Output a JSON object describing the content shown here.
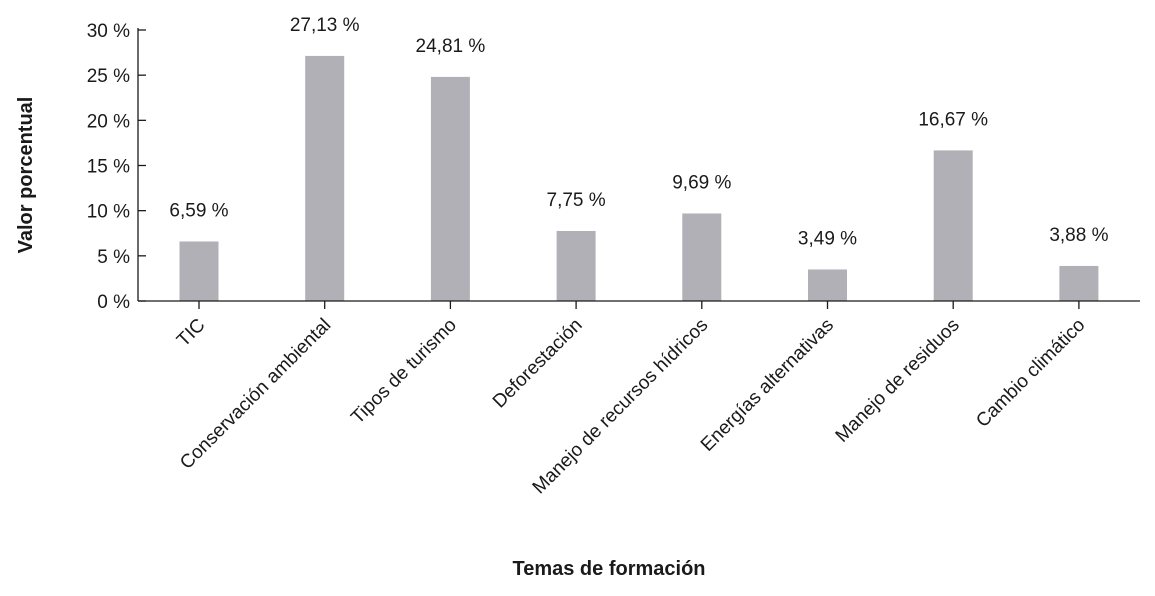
{
  "chart_data": {
    "type": "bar",
    "categories": [
      "TIC",
      "Conservación ambiental",
      "Tipos de turismo",
      "Deforestación",
      "Manejo de recursos hídricos",
      "Energías alternativas",
      "Manejo de residuos",
      "Cambio climático"
    ],
    "values": [
      6.59,
      27.13,
      24.81,
      7.75,
      9.69,
      3.49,
      16.67,
      3.88
    ],
    "data_labels": [
      "6,59 %",
      "27,13 %",
      "24,81 %",
      "7,75 %",
      "9,69 %",
      "3,49 %",
      "16,67 %",
      "3,88 %"
    ],
    "title": "",
    "xlabel": "Temas de formación",
    "ylabel": "Valor porcentual",
    "ylim": [
      0,
      30
    ],
    "yticks": [
      0,
      5,
      10,
      15,
      20,
      25,
      30
    ],
    "ytick_labels": [
      "0 %",
      "5 %",
      "10 %",
      "15 %",
      "20 %",
      "25 %",
      "30 %"
    ],
    "bar_color": "#b1b0b6",
    "grid": false,
    "legend": "none"
  }
}
